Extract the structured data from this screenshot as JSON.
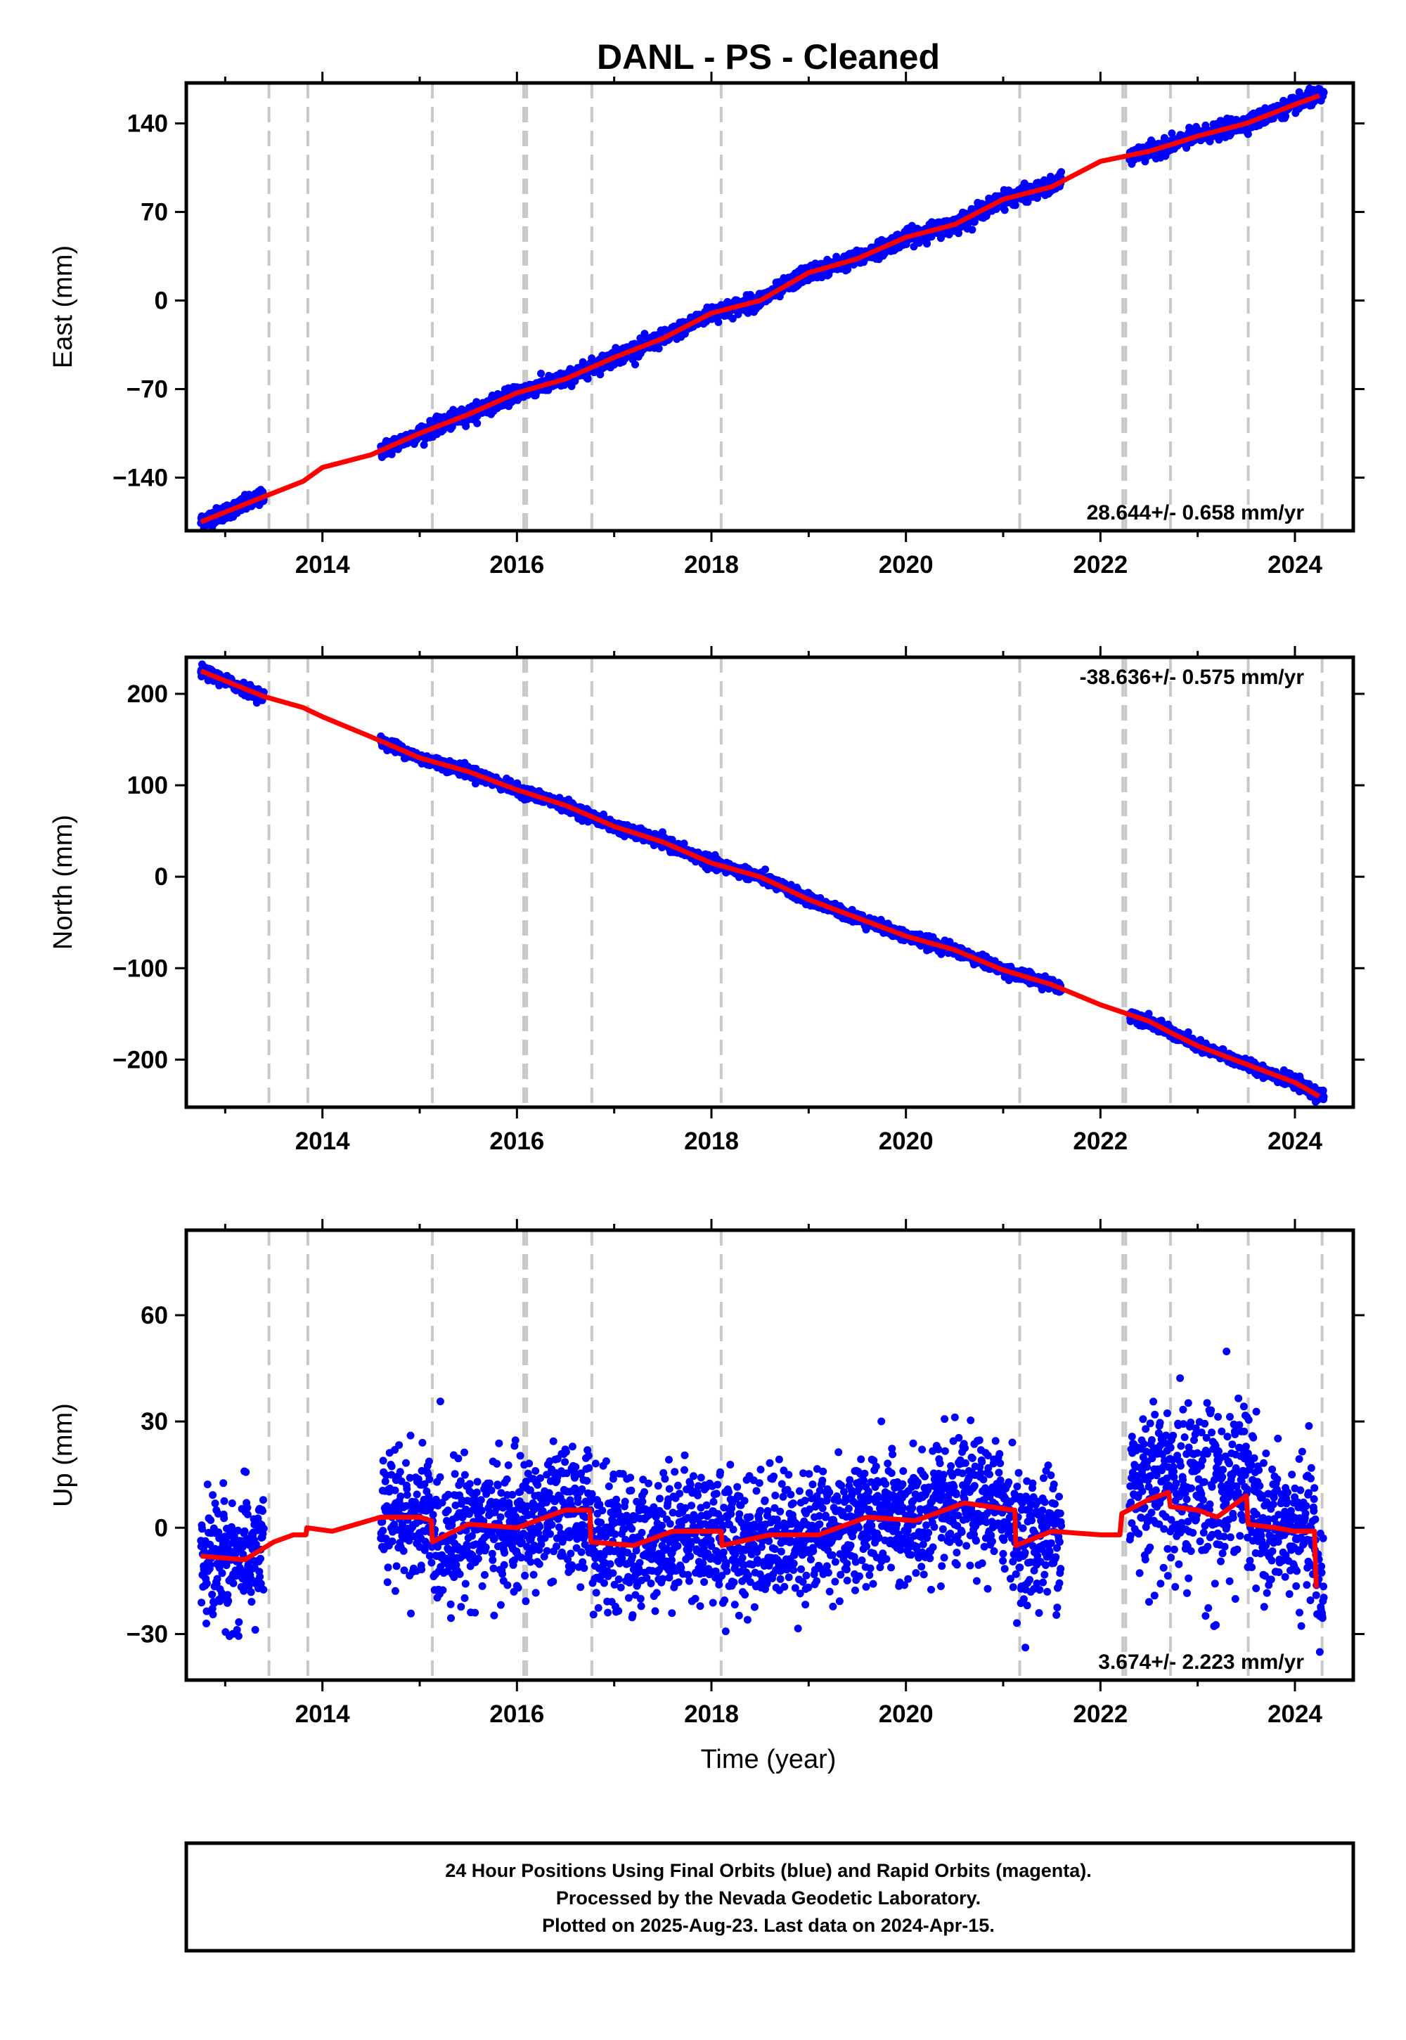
{
  "title": "DANL  - PS - Cleaned",
  "xlabel": "Time (year)",
  "footer": {
    "line1": "24 Hour Positions Using Final Orbits (blue) and Rapid Orbits (magenta).",
    "line2": "Processed by the Nevada Geodetic Laboratory.",
    "line3": "Plotted on 2025-Aug-23. Last data on 2024-Apr-15."
  },
  "colors": {
    "points": "#0000ff",
    "model": "#ff0000",
    "steps": "#c8c8c8",
    "frame": "#000000"
  },
  "chart_data": [
    {
      "type": "scatter",
      "component": "East",
      "ylabel": "East (mm)",
      "rate": "28.644+/- 0.658 mm/yr",
      "xlim": [
        2012.6,
        2024.6
      ],
      "ylim": [
        -182,
        172
      ],
      "yticks": [
        -140,
        -70,
        0,
        70,
        140
      ],
      "xticks": [
        2014,
        2016,
        2018,
        2020,
        2022,
        2024
      ],
      "model": [
        [
          2012.75,
          -175
        ],
        [
          2013.4,
          -155
        ],
        [
          2013.8,
          -143
        ],
        [
          2014.0,
          -132
        ],
        [
          2014.5,
          -122
        ],
        [
          2015.0,
          -105
        ],
        [
          2015.5,
          -90
        ],
        [
          2016.0,
          -73
        ],
        [
          2016.5,
          -62
        ],
        [
          2017.0,
          -45
        ],
        [
          2017.5,
          -30
        ],
        [
          2018.0,
          -10
        ],
        [
          2018.5,
          0
        ],
        [
          2019.0,
          22
        ],
        [
          2019.5,
          33
        ],
        [
          2020.0,
          50
        ],
        [
          2020.5,
          60
        ],
        [
          2021.0,
          80
        ],
        [
          2021.5,
          90
        ],
        [
          2022.0,
          110
        ],
        [
          2022.5,
          118
        ],
        [
          2022.8,
          125
        ],
        [
          2023.0,
          130
        ],
        [
          2023.5,
          140
        ],
        [
          2024.0,
          155
        ],
        [
          2024.25,
          162
        ]
      ],
      "data_segments": [
        [
          2012.75,
          2013.4
        ],
        [
          2014.6,
          2021.6
        ],
        [
          2022.3,
          2024.3
        ]
      ],
      "scatter_sd": 3
    },
    {
      "type": "scatter",
      "component": "North",
      "ylabel": "North (mm)",
      "rate": "-38.636+/- 0.575 mm/yr",
      "xlim": [
        2012.6,
        2024.6
      ],
      "ylim": [
        -252,
        240
      ],
      "yticks": [
        -200,
        -100,
        0,
        100,
        200
      ],
      "xticks": [
        2014,
        2016,
        2018,
        2020,
        2022,
        2024
      ],
      "model": [
        [
          2012.75,
          225
        ],
        [
          2013.4,
          197
        ],
        [
          2013.8,
          185
        ],
        [
          2014.0,
          175
        ],
        [
          2014.5,
          153
        ],
        [
          2015.0,
          130
        ],
        [
          2015.5,
          115
        ],
        [
          2016.0,
          95
        ],
        [
          2016.5,
          78
        ],
        [
          2017.0,
          55
        ],
        [
          2017.5,
          38
        ],
        [
          2018.0,
          15
        ],
        [
          2018.5,
          0
        ],
        [
          2019.0,
          -25
        ],
        [
          2019.5,
          -45
        ],
        [
          2020.0,
          -65
        ],
        [
          2020.5,
          -80
        ],
        [
          2021.0,
          -102
        ],
        [
          2021.5,
          -118
        ],
        [
          2022.0,
          -140
        ],
        [
          2022.5,
          -158
        ],
        [
          2022.75,
          -172
        ],
        [
          2023.0,
          -185
        ],
        [
          2023.5,
          -205
        ],
        [
          2024.0,
          -225
        ],
        [
          2024.25,
          -240
        ]
      ],
      "data_segments": [
        [
          2012.75,
          2013.4
        ],
        [
          2014.6,
          2021.6
        ],
        [
          2022.3,
          2024.3
        ]
      ],
      "scatter_sd": 3
    },
    {
      "type": "scatter",
      "component": "Up",
      "ylabel": "Up (mm)",
      "rate": "3.674+/- 2.223 mm/yr",
      "xlim": [
        2012.6,
        2024.6
      ],
      "ylim": [
        -43,
        84
      ],
      "yticks": [
        -30,
        0,
        30,
        60
      ],
      "xticks": [
        2014,
        2016,
        2018,
        2020,
        2022,
        2024
      ],
      "model": [
        [
          2012.75,
          -8
        ],
        [
          2013.2,
          -9
        ],
        [
          2013.5,
          -4
        ],
        [
          2013.7,
          -2
        ],
        [
          2013.83,
          -2
        ],
        [
          2013.84,
          0
        ],
        [
          2014.1,
          -1
        ],
        [
          2014.6,
          3
        ],
        [
          2015.0,
          3
        ],
        [
          2015.12,
          2
        ],
        [
          2015.13,
          -4
        ],
        [
          2015.5,
          1
        ],
        [
          2016.0,
          0
        ],
        [
          2016.5,
          5
        ],
        [
          2016.75,
          5
        ],
        [
          2016.76,
          -4
        ],
        [
          2017.2,
          -5
        ],
        [
          2017.6,
          -1
        ],
        [
          2018.1,
          -1
        ],
        [
          2018.11,
          -5
        ],
        [
          2018.6,
          -2
        ],
        [
          2019.1,
          -2
        ],
        [
          2019.6,
          3
        ],
        [
          2020.1,
          2
        ],
        [
          2020.6,
          7
        ],
        [
          2021.1,
          5
        ],
        [
          2021.12,
          5
        ],
        [
          2021.13,
          -5
        ],
        [
          2021.5,
          -1
        ],
        [
          2022.0,
          -2
        ],
        [
          2022.2,
          -2
        ],
        [
          2022.22,
          4
        ],
        [
          2022.5,
          8
        ],
        [
          2022.7,
          10
        ],
        [
          2022.72,
          6
        ],
        [
          2023.0,
          5
        ],
        [
          2023.2,
          3
        ],
        [
          2023.5,
          9
        ],
        [
          2023.52,
          1
        ],
        [
          2023.8,
          0
        ],
        [
          2024.0,
          -1
        ],
        [
          2024.2,
          -1
        ],
        [
          2024.22,
          -17
        ]
      ],
      "data_segments": [
        [
          2012.75,
          2013.4
        ],
        [
          2014.6,
          2021.6
        ],
        [
          2022.3,
          2024.3
        ]
      ],
      "scatter_sd": 9
    }
  ],
  "step_lines": [
    2013.45,
    2013.85,
    2015.13,
    2016.07,
    2016.1,
    2016.77,
    2018.1,
    2021.17,
    2022.23,
    2022.26,
    2022.72,
    2023.52,
    2024.28
  ]
}
